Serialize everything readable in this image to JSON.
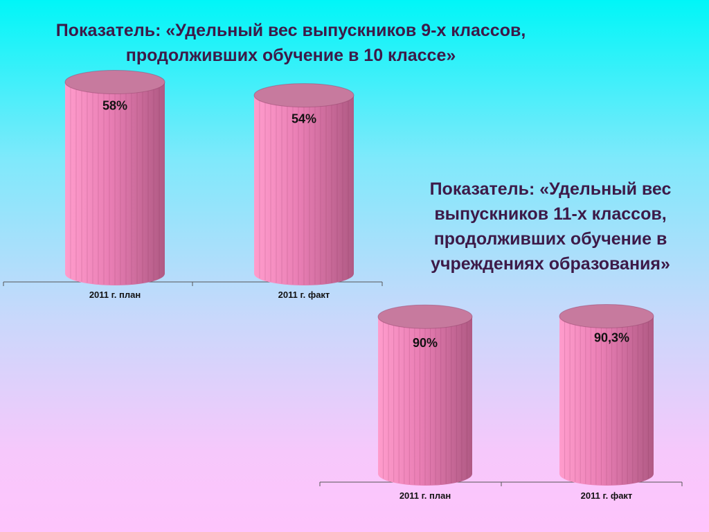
{
  "titles": {
    "chart1": [
      "Показатель: «Удельный вес выпускников 9-х классов,",
      "продолживших обучение в 10 классе»"
    ],
    "chart2": [
      "Показатель: «Удельный вес",
      "выпускников 11-х классов,",
      "продолживших обучение в",
      "учреждениях образования»"
    ]
  },
  "colors": {
    "bar_light": "#ff9ccc",
    "bar_mid": "#e97eb4",
    "bar_dark": "#b05a84",
    "top": "#c77a9e",
    "text": "#3d1a48",
    "axis": "#555555"
  },
  "chart_data": [
    {
      "type": "bar",
      "title": "Показатель: «Удельный вес выпускников 9-х классов, продолживших обучение в 10 классе»",
      "categories": [
        "2011 г. план",
        "2011 г. факт"
      ],
      "values": [
        58,
        54
      ],
      "labels": [
        "58%",
        "54%"
      ],
      "ylim": [
        0,
        60
      ],
      "style": "3d-cylinder"
    },
    {
      "type": "bar",
      "title": "Показатель: «Удельный вес выпускников 11-х классов, продолживших обучение в учреждениях образования»",
      "categories": [
        "2011 г. план",
        "2011 г. факт"
      ],
      "values": [
        90,
        90.3
      ],
      "labels": [
        "90%",
        "90,3%"
      ],
      "ylim": [
        0,
        100
      ],
      "style": "3d-cylinder"
    }
  ]
}
